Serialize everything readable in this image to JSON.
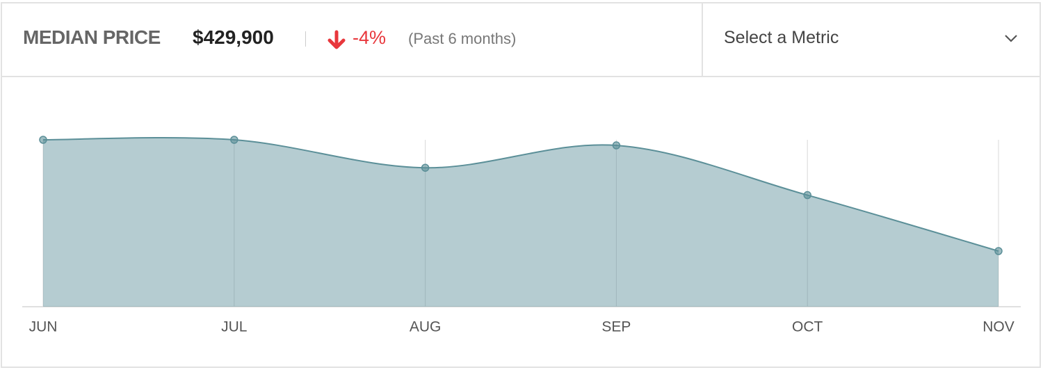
{
  "header": {
    "label": "MEDIAN PRICE",
    "value": "$429,900",
    "change": "-4%",
    "period": "(Past 6 months)"
  },
  "dropdown": {
    "placeholder": "Select a Metric"
  },
  "chart_data": {
    "type": "area",
    "categories": [
      "JUN",
      "JUL",
      "AUG",
      "SEP",
      "OCT",
      "NOV"
    ],
    "values": [
      447800,
      447800,
      443300,
      446900,
      438900,
      429900
    ],
    "color": "#5b8f98",
    "ylim": [
      420950,
      447800
    ]
  }
}
